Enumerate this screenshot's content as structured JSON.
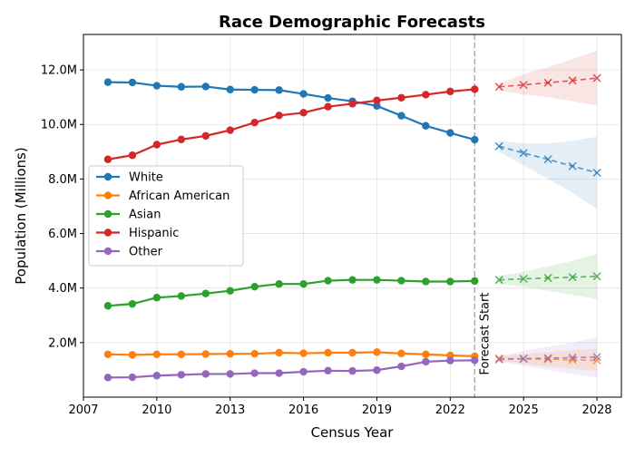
{
  "chart_data": {
    "type": "line",
    "title": "Race Demographic Forecasts",
    "xlabel": "Census Year",
    "ylabel": "Population (Millions)",
    "xlim": [
      2007,
      2029
    ],
    "ylim": [
      0,
      13.3
    ],
    "x_ticks": [
      2007,
      2010,
      2013,
      2016,
      2019,
      2022,
      2025,
      2028
    ],
    "y_ticks": [
      2,
      4,
      6,
      8,
      10,
      12
    ],
    "y_tick_labels": [
      "2.0M",
      "4.0M",
      "6.0M",
      "8.0M",
      "10.0M",
      "12.0M"
    ],
    "grid": true,
    "legend_position": "center-left",
    "forecast_start_x": 2023,
    "forecast_start_label": "Forecast Start",
    "x": [
      2008,
      2009,
      2010,
      2011,
      2012,
      2013,
      2014,
      2015,
      2016,
      2017,
      2018,
      2019,
      2020,
      2021,
      2022,
      2023
    ],
    "forecast_x": [
      2024,
      2025,
      2026,
      2027,
      2028
    ],
    "series": [
      {
        "name": "White",
        "color": "#1f77b4",
        "values": [
          11.55,
          11.54,
          11.42,
          11.38,
          11.39,
          11.28,
          11.27,
          11.26,
          11.12,
          10.97,
          10.85,
          10.68,
          10.32,
          9.95,
          9.69,
          9.44
        ],
        "forecast": [
          9.2,
          8.95,
          8.72,
          8.47,
          8.23
        ],
        "forecast_lower": [
          9.0,
          8.5,
          8.0,
          7.5,
          6.9
        ],
        "forecast_upper": [
          9.4,
          9.3,
          9.3,
          9.4,
          9.55
        ]
      },
      {
        "name": "African American",
        "color": "#ff7f0e",
        "values": [
          1.57,
          1.55,
          1.57,
          1.57,
          1.58,
          1.59,
          1.59,
          1.63,
          1.61,
          1.63,
          1.63,
          1.65,
          1.6,
          1.57,
          1.53,
          1.5
        ],
        "forecast": [
          1.42,
          1.41,
          1.39,
          1.37,
          1.35
        ],
        "forecast_lower": [
          1.32,
          1.22,
          1.12,
          1.05,
          0.95
        ],
        "forecast_upper": [
          1.52,
          1.58,
          1.65,
          1.72,
          1.78
        ]
      },
      {
        "name": "Asian",
        "color": "#2ca02c",
        "values": [
          3.35,
          3.42,
          3.65,
          3.71,
          3.8,
          3.9,
          4.05,
          4.15,
          4.15,
          4.27,
          4.3,
          4.3,
          4.27,
          4.24,
          4.24,
          4.26
        ],
        "forecast": [
          4.3,
          4.34,
          4.37,
          4.4,
          4.43
        ],
        "forecast_lower": [
          4.15,
          4.05,
          3.9,
          3.75,
          3.6
        ],
        "forecast_upper": [
          4.45,
          4.6,
          4.8,
          5.0,
          5.25
        ]
      },
      {
        "name": "Hispanic",
        "color": "#d62728",
        "values": [
          8.72,
          8.87,
          9.26,
          9.45,
          9.58,
          9.79,
          10.07,
          10.33,
          10.43,
          10.65,
          10.76,
          10.88,
          10.98,
          11.09,
          11.21,
          11.29
        ],
        "forecast": [
          11.38,
          11.45,
          11.53,
          11.61,
          11.7
        ],
        "forecast_lower": [
          11.25,
          11.1,
          11.0,
          10.85,
          10.7
        ],
        "forecast_upper": [
          11.5,
          11.85,
          12.1,
          12.4,
          12.7
        ]
      },
      {
        "name": "Other",
        "color": "#9467bd",
        "values": [
          0.72,
          0.73,
          0.79,
          0.82,
          0.85,
          0.85,
          0.88,
          0.88,
          0.93,
          0.97,
          0.96,
          0.99,
          1.13,
          1.3,
          1.34,
          1.35
        ],
        "forecast": [
          1.38,
          1.41,
          1.43,
          1.45,
          1.47
        ],
        "forecast_lower": [
          1.3,
          1.15,
          1.0,
          0.85,
          0.7
        ],
        "forecast_upper": [
          1.5,
          1.7,
          1.85,
          2.0,
          2.2
        ]
      }
    ]
  }
}
